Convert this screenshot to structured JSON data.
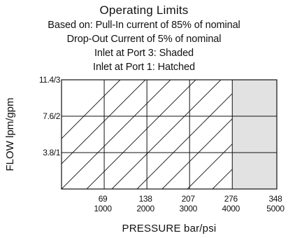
{
  "chart_data": {
    "type": "area",
    "title": "Operating Limits",
    "subtitle_lines": [
      "Based on: Pull-In current of 85% of nominal",
      "Drop-Out Current of 5% of nominal",
      "Inlet at Port 3: Shaded",
      "Inlet at Port 1: Hatched"
    ],
    "xlabel": "PRESSURE bar/psi",
    "ylabel": "FLOW lpm/gpm",
    "xlim": [
      0,
      348
    ],
    "ylim": [
      0,
      11.4
    ],
    "grid": true,
    "x_ticks": [
      {
        "value": 69,
        "label_top": "69",
        "label_bottom": "1000"
      },
      {
        "value": 138,
        "label_top": "138",
        "label_bottom": "2000"
      },
      {
        "value": 207,
        "label_top": "207",
        "label_bottom": "3000"
      },
      {
        "value": 276,
        "label_top": "276",
        "label_bottom": "4000"
      },
      {
        "value": 348,
        "label_top": "348",
        "label_bottom": "5000"
      }
    ],
    "y_ticks": [
      {
        "value": 3.8,
        "label": "3.8/1"
      },
      {
        "value": 7.6,
        "label": "7.6/2"
      },
      {
        "value": 11.4,
        "label": "11.4/3"
      }
    ],
    "regions": [
      {
        "name": "Inlet at Port 1: Hatched",
        "fill": "hatched",
        "x_range": [
          0,
          276
        ],
        "y_range": [
          0,
          11.4
        ]
      },
      {
        "name": "Inlet at Port 3: Shaded",
        "fill": "shaded",
        "x_range": [
          276,
          348
        ],
        "y_range": [
          0,
          11.4
        ]
      }
    ],
    "colors": {
      "shaded": "#e2e2e2",
      "line": "#111111"
    }
  }
}
